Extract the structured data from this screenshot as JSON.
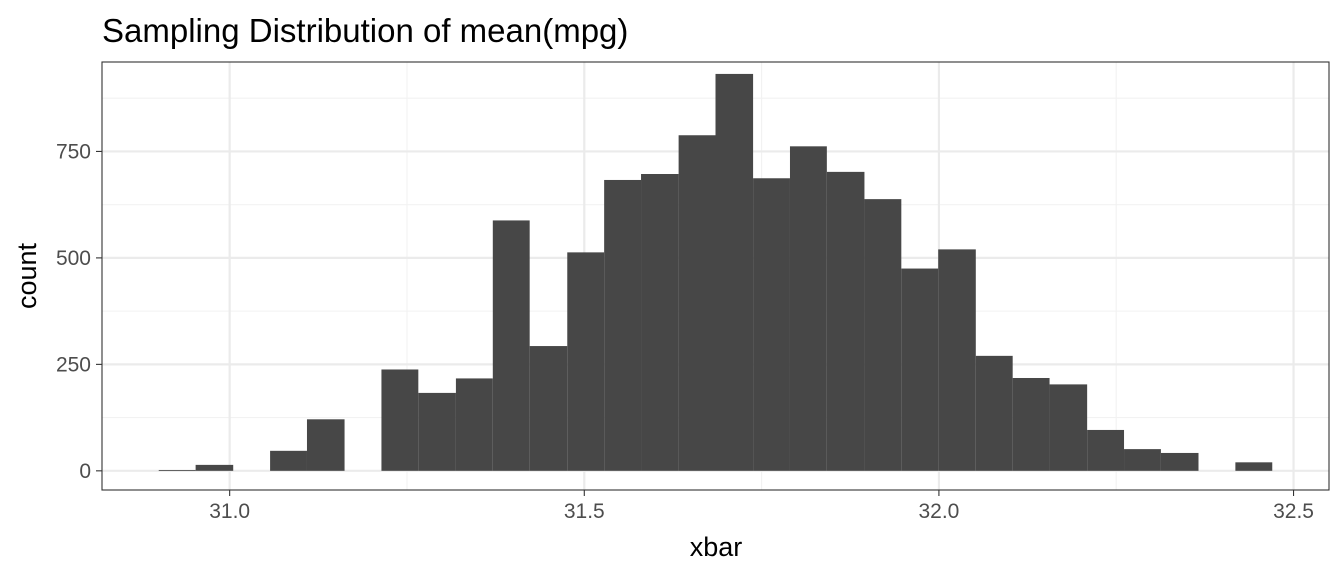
{
  "chart_data": {
    "type": "bar",
    "title": "Sampling Distribution of mean(mpg)",
    "xlabel": "xbar",
    "ylabel": "count",
    "xlim": [
      30.82,
      32.55
    ],
    "ylim": [
      -45,
      960
    ],
    "x_ticks": [
      31.0,
      31.5,
      32.0,
      32.5
    ],
    "x_tick_labels": [
      "31.0",
      "31.5",
      "32.0",
      "32.5"
    ],
    "y_ticks": [
      0,
      250,
      500,
      750
    ],
    "y_tick_labels": [
      "0",
      "250",
      "500",
      "750"
    ],
    "x_minor_ticks": [
      31.25,
      31.75,
      32.25
    ],
    "y_minor_ticks": [
      125,
      375,
      625,
      875
    ],
    "grid": true,
    "bin_width": 0.0523,
    "bars": [
      {
        "x_start": 30.9,
        "x_end": 30.952,
        "count": 2
      },
      {
        "x_start": 30.952,
        "x_end": 31.005,
        "count": 14
      },
      {
        "x_start": 31.005,
        "x_end": 31.057,
        "count": 0
      },
      {
        "x_start": 31.057,
        "x_end": 31.109,
        "count": 47
      },
      {
        "x_start": 31.109,
        "x_end": 31.162,
        "count": 121
      },
      {
        "x_start": 31.162,
        "x_end": 31.214,
        "count": 0
      },
      {
        "x_start": 31.214,
        "x_end": 31.266,
        "count": 238
      },
      {
        "x_start": 31.266,
        "x_end": 31.319,
        "count": 183
      },
      {
        "x_start": 31.319,
        "x_end": 31.371,
        "count": 217
      },
      {
        "x_start": 31.371,
        "x_end": 31.423,
        "count": 588
      },
      {
        "x_start": 31.423,
        "x_end": 31.476,
        "count": 293
      },
      {
        "x_start": 31.476,
        "x_end": 31.528,
        "count": 513
      },
      {
        "x_start": 31.528,
        "x_end": 31.58,
        "count": 683
      },
      {
        "x_start": 31.58,
        "x_end": 31.633,
        "count": 697
      },
      {
        "x_start": 31.633,
        "x_end": 31.685,
        "count": 788
      },
      {
        "x_start": 31.685,
        "x_end": 31.738,
        "count": 932
      },
      {
        "x_start": 31.738,
        "x_end": 31.79,
        "count": 687
      },
      {
        "x_start": 31.79,
        "x_end": 31.842,
        "count": 762
      },
      {
        "x_start": 31.842,
        "x_end": 31.895,
        "count": 702
      },
      {
        "x_start": 31.895,
        "x_end": 31.947,
        "count": 638
      },
      {
        "x_start": 31.947,
        "x_end": 31.999,
        "count": 475
      },
      {
        "x_start": 31.999,
        "x_end": 32.052,
        "count": 520
      },
      {
        "x_start": 32.052,
        "x_end": 32.104,
        "count": 270
      },
      {
        "x_start": 32.104,
        "x_end": 32.156,
        "count": 218
      },
      {
        "x_start": 32.156,
        "x_end": 32.209,
        "count": 203
      },
      {
        "x_start": 32.209,
        "x_end": 32.261,
        "count": 96
      },
      {
        "x_start": 32.261,
        "x_end": 32.313,
        "count": 51
      },
      {
        "x_start": 32.313,
        "x_end": 32.366,
        "count": 42
      },
      {
        "x_start": 32.366,
        "x_end": 32.418,
        "count": 0
      },
      {
        "x_start": 32.418,
        "x_end": 32.47,
        "count": 20
      }
    ],
    "colors": {
      "bar_fill": "#474747",
      "panel_border": "#333333",
      "grid_major": "#ebebeb",
      "grid_minor": "#f2f2f2",
      "tick_text": "#4d4d4d"
    }
  }
}
